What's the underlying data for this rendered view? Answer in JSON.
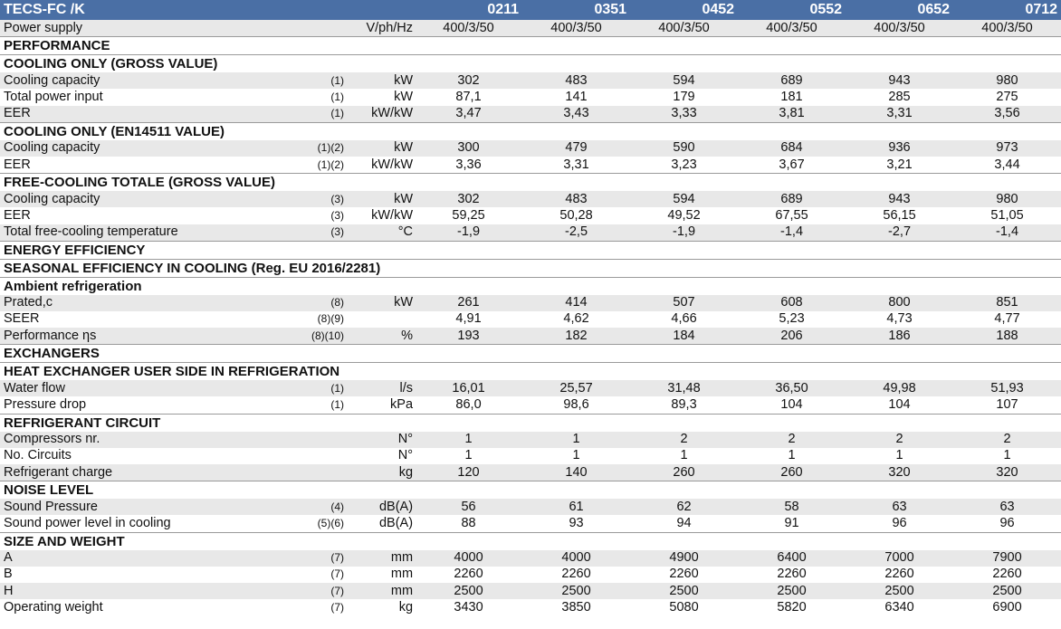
{
  "header": {
    "title": "TECS-FC /K",
    "models": [
      "0211",
      "0351",
      "0452",
      "0552",
      "0652",
      "0712"
    ]
  },
  "rows": [
    {
      "type": "row",
      "label": "Power supply",
      "note": "",
      "unit": "V/ph/Hz",
      "values": [
        "400/3/50",
        "400/3/50",
        "400/3/50",
        "400/3/50",
        "400/3/50",
        "400/3/50"
      ]
    },
    {
      "type": "section",
      "label": "PERFORMANCE"
    },
    {
      "type": "section",
      "label": "COOLING ONLY (GROSS VALUE)"
    },
    {
      "type": "row",
      "label": "Cooling capacity",
      "note": "(1)",
      "unit": "kW",
      "values": [
        "302",
        "483",
        "594",
        "689",
        "943",
        "980"
      ]
    },
    {
      "type": "row",
      "label": "Total power input",
      "note": "(1)",
      "unit": "kW",
      "values": [
        "87,1",
        "141",
        "179",
        "181",
        "285",
        "275"
      ]
    },
    {
      "type": "row",
      "label": "EER",
      "note": "(1)",
      "unit": "kW/kW",
      "values": [
        "3,47",
        "3,43",
        "3,33",
        "3,81",
        "3,31",
        "3,56"
      ]
    },
    {
      "type": "section",
      "label": "COOLING ONLY (EN14511 VALUE)"
    },
    {
      "type": "row",
      "label": "Cooling capacity",
      "note": "(1)(2)",
      "unit": "kW",
      "values": [
        "300",
        "479",
        "590",
        "684",
        "936",
        "973"
      ]
    },
    {
      "type": "row",
      "label": "EER",
      "note": "(1)(2)",
      "unit": "kW/kW",
      "values": [
        "3,36",
        "3,31",
        "3,23",
        "3,67",
        "3,21",
        "3,44"
      ]
    },
    {
      "type": "section",
      "label": "FREE-COOLING TOTALE (GROSS VALUE)"
    },
    {
      "type": "row",
      "label": "Cooling capacity",
      "note": "(3)",
      "unit": "kW",
      "values": [
        "302",
        "483",
        "594",
        "689",
        "943",
        "980"
      ]
    },
    {
      "type": "row",
      "label": "EER",
      "note": "(3)",
      "unit": "kW/kW",
      "values": [
        "59,25",
        "50,28",
        "49,52",
        "67,55",
        "56,15",
        "51,05"
      ]
    },
    {
      "type": "row",
      "label": "Total free-cooling temperature",
      "note": "(3)",
      "unit": "°C",
      "values": [
        "-1,9",
        "-2,5",
        "-1,9",
        "-1,4",
        "-2,7",
        "-1,4"
      ]
    },
    {
      "type": "section",
      "label": "ENERGY EFFICIENCY"
    },
    {
      "type": "section",
      "label": "SEASONAL EFFICIENCY IN COOLING (Reg. EU 2016/2281)"
    },
    {
      "type": "section",
      "label": "Ambient refrigeration"
    },
    {
      "type": "row",
      "label": "Prated,c",
      "note": "(8)",
      "unit": "kW",
      "values": [
        "261",
        "414",
        "507",
        "608",
        "800",
        "851"
      ]
    },
    {
      "type": "row",
      "label": "SEER",
      "note": "(8)(9)",
      "unit": "",
      "values": [
        "4,91",
        "4,62",
        "4,66",
        "5,23",
        "4,73",
        "4,77"
      ]
    },
    {
      "type": "row",
      "label": "Performance ηs",
      "note": "(8)(10)",
      "unit": "%",
      "values": [
        "193",
        "182",
        "184",
        "206",
        "186",
        "188"
      ]
    },
    {
      "type": "section",
      "label": "EXCHANGERS"
    },
    {
      "type": "section",
      "label": "HEAT EXCHANGER USER SIDE IN REFRIGERATION"
    },
    {
      "type": "row",
      "label": "Water flow",
      "note": "(1)",
      "unit": "l/s",
      "values": [
        "16,01",
        "25,57",
        "31,48",
        "36,50",
        "49,98",
        "51,93"
      ]
    },
    {
      "type": "row",
      "label": "Pressure drop",
      "note": "(1)",
      "unit": "kPa",
      "values": [
        "86,0",
        "98,6",
        "89,3",
        "104",
        "104",
        "107"
      ]
    },
    {
      "type": "section",
      "label": "REFRIGERANT CIRCUIT"
    },
    {
      "type": "row",
      "label": "Compressors nr.",
      "note": "",
      "unit": "N°",
      "values": [
        "1",
        "1",
        "2",
        "2",
        "2",
        "2"
      ]
    },
    {
      "type": "row",
      "label": "No. Circuits",
      "note": "",
      "unit": "N°",
      "values": [
        "1",
        "1",
        "1",
        "1",
        "1",
        "1"
      ]
    },
    {
      "type": "row",
      "label": "Refrigerant charge",
      "note": "",
      "unit": "kg",
      "values": [
        "120",
        "140",
        "260",
        "260",
        "320",
        "320"
      ]
    },
    {
      "type": "section",
      "label": "NOISE LEVEL"
    },
    {
      "type": "row",
      "label": "Sound Pressure",
      "note": "(4)",
      "unit": "dB(A)",
      "values": [
        "56",
        "61",
        "62",
        "58",
        "63",
        "63"
      ]
    },
    {
      "type": "row",
      "label": "Sound power level in cooling",
      "note": "(5)(6)",
      "unit": "dB(A)",
      "values": [
        "88",
        "93",
        "94",
        "91",
        "96",
        "96"
      ]
    },
    {
      "type": "section",
      "label": "SIZE AND WEIGHT"
    },
    {
      "type": "row",
      "label": "A",
      "note": "(7)",
      "unit": "mm",
      "values": [
        "4000",
        "4000",
        "4900",
        "6400",
        "7000",
        "7900"
      ]
    },
    {
      "type": "row",
      "label": "B",
      "note": "(7)",
      "unit": "mm",
      "values": [
        "2260",
        "2260",
        "2260",
        "2260",
        "2260",
        "2260"
      ]
    },
    {
      "type": "row",
      "label": "H",
      "note": "(7)",
      "unit": "mm",
      "values": [
        "2500",
        "2500",
        "2500",
        "2500",
        "2500",
        "2500"
      ]
    },
    {
      "type": "row",
      "label": "Operating weight",
      "note": "(7)",
      "unit": "kg",
      "values": [
        "3430",
        "3850",
        "5080",
        "5820",
        "6340",
        "6900"
      ]
    }
  ]
}
